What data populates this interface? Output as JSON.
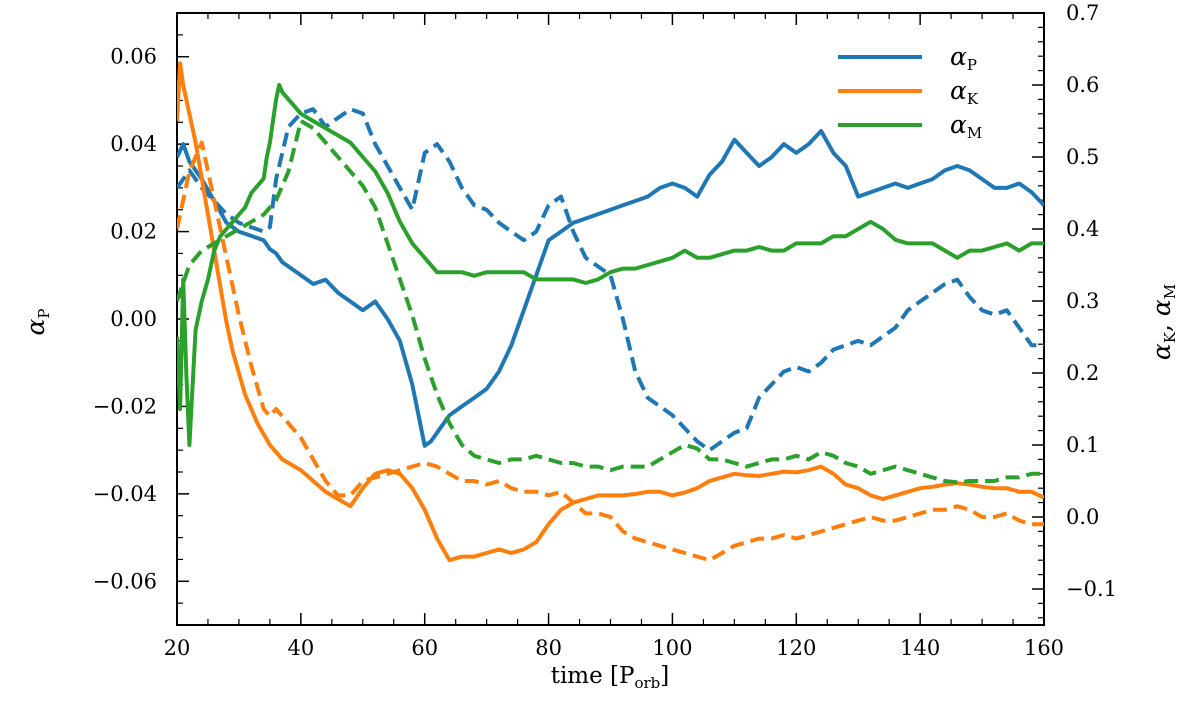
{
  "chart_data": {
    "type": "line",
    "xlabel": {
      "main": "time [P",
      "sub": "orb",
      "close": "]"
    },
    "ylabel_left": {
      "main": "α",
      "sub": "P"
    },
    "ylabel_right": {
      "main1": "α",
      "sub1": "K",
      "sep": ", ",
      "main2": "α",
      "sub2": "M"
    },
    "xlim": [
      20,
      160
    ],
    "ylim_left": [
      -0.07,
      0.07
    ],
    "ylim_right": [
      -0.15,
      0.7
    ],
    "x_ticks": [
      {
        "v": 20,
        "label": "20"
      },
      {
        "v": 40,
        "label": "40"
      },
      {
        "v": 60,
        "label": "60"
      },
      {
        "v": 80,
        "label": "80"
      },
      {
        "v": 100,
        "label": "100"
      },
      {
        "v": 120,
        "label": "120"
      },
      {
        "v": 140,
        "label": "140"
      },
      {
        "v": 160,
        "label": "160"
      }
    ],
    "y_left_ticks": [
      {
        "v": -0.06,
        "label": "−0.06"
      },
      {
        "v": -0.04,
        "label": "−0.04"
      },
      {
        "v": -0.02,
        "label": "−0.02"
      },
      {
        "v": 0.0,
        "label": "0.00"
      },
      {
        "v": 0.02,
        "label": "0.02"
      },
      {
        "v": 0.04,
        "label": "0.04"
      },
      {
        "v": 0.06,
        "label": "0.06"
      }
    ],
    "y_right_ticks": [
      {
        "v": -0.1,
        "label": "−0.1"
      },
      {
        "v": 0.0,
        "label": "0.0"
      },
      {
        "v": 0.1,
        "label": "0.1"
      },
      {
        "v": 0.2,
        "label": "0.2"
      },
      {
        "v": 0.3,
        "label": "0.3"
      },
      {
        "v": 0.4,
        "label": "0.4"
      },
      {
        "v": 0.5,
        "label": "0.5"
      },
      {
        "v": 0.6,
        "label": "0.6"
      },
      {
        "v": 0.7,
        "label": "0.7"
      }
    ],
    "legend": {
      "placement": "top-right",
      "entries": [
        {
          "main": "α",
          "sub": "P",
          "color": "#1f77b4"
        },
        {
          "main": "α",
          "sub": "K",
          "color": "#ff7f0e"
        },
        {
          "main": "α",
          "sub": "M",
          "color": "#2ca02c"
        }
      ]
    },
    "series": [
      {
        "legend_index": 0,
        "color": "#1f77b4",
        "style": "solid",
        "axis": "left",
        "x": [
          20,
          21,
          22,
          24,
          26,
          28,
          30,
          32,
          34,
          35,
          36,
          37,
          38,
          39,
          40,
          42,
          44,
          46,
          48,
          50,
          52,
          54,
          56,
          58,
          59,
          60,
          61,
          62,
          63,
          64,
          66,
          68,
          70,
          72,
          74,
          76,
          78,
          80,
          82,
          84,
          86,
          88,
          90,
          92,
          94,
          96,
          98,
          100,
          102,
          104,
          106,
          108,
          110,
          112,
          114,
          116,
          118,
          120,
          122,
          124,
          126,
          128,
          130,
          132,
          134,
          136,
          138,
          140,
          142,
          144,
          146,
          148,
          150,
          152,
          154,
          156,
          158,
          160
        ],
        "y": [
          0.037,
          0.04,
          0.036,
          0.032,
          0.027,
          0.022,
          0.02,
          0.019,
          0.018,
          0.016,
          0.015,
          0.013,
          0.012,
          0.011,
          0.01,
          0.008,
          0.009,
          0.006,
          0.004,
          0.002,
          0.004,
          0.0,
          -0.005,
          -0.015,
          -0.022,
          -0.029,
          -0.028,
          -0.026,
          -0.024,
          -0.022,
          -0.02,
          -0.018,
          -0.016,
          -0.012,
          -0.006,
          0.002,
          0.01,
          0.018,
          0.02,
          0.022,
          0.023,
          0.024,
          0.025,
          0.026,
          0.027,
          0.028,
          0.03,
          0.031,
          0.03,
          0.028,
          0.033,
          0.036,
          0.041,
          0.038,
          0.035,
          0.037,
          0.04,
          0.038,
          0.04,
          0.043,
          0.038,
          0.035,
          0.028,
          0.029,
          0.03,
          0.031,
          0.03,
          0.031,
          0.032,
          0.034,
          0.035,
          0.034,
          0.032,
          0.03,
          0.03,
          0.031,
          0.029,
          0.026
        ]
      },
      {
        "legend_index": null,
        "color": "#1f77b4",
        "style": "dashed",
        "axis": "left",
        "x": [
          20,
          22,
          24,
          26,
          28,
          30,
          32,
          34,
          35,
          36,
          38,
          40,
          42,
          44,
          46,
          48,
          50,
          52,
          54,
          56,
          58,
          60,
          62,
          64,
          66,
          68,
          70,
          72,
          74,
          76,
          78,
          80,
          82,
          84,
          86,
          88,
          90,
          92,
          94,
          96,
          98,
          100,
          102,
          104,
          106,
          108,
          110,
          112,
          114,
          116,
          118,
          120,
          122,
          124,
          126,
          128,
          130,
          132,
          134,
          136,
          138,
          140,
          142,
          144,
          146,
          148,
          150,
          152,
          154,
          156,
          158,
          160
        ],
        "y": [
          0.03,
          0.034,
          0.03,
          0.027,
          0.024,
          0.022,
          0.021,
          0.02,
          0.021,
          0.032,
          0.044,
          0.047,
          0.048,
          0.044,
          0.046,
          0.048,
          0.047,
          0.04,
          0.035,
          0.03,
          0.025,
          0.038,
          0.04,
          0.036,
          0.03,
          0.026,
          0.025,
          0.022,
          0.02,
          0.018,
          0.02,
          0.026,
          0.028,
          0.02,
          0.014,
          0.012,
          0.01,
          0.0,
          -0.012,
          -0.018,
          -0.02,
          -0.022,
          -0.025,
          -0.028,
          -0.03,
          -0.028,
          -0.026,
          -0.025,
          -0.018,
          -0.015,
          -0.012,
          -0.011,
          -0.012,
          -0.01,
          -0.007,
          -0.006,
          -0.005,
          -0.006,
          -0.004,
          -0.002,
          0.002,
          0.004,
          0.006,
          0.008,
          0.009,
          0.005,
          0.002,
          0.001,
          0.002,
          -0.002,
          -0.006,
          -0.006
        ]
      },
      {
        "legend_index": 1,
        "color": "#ff7f0e",
        "style": "solid",
        "axis": "right",
        "x": [
          20,
          20.5,
          21,
          22,
          23,
          24,
          25,
          26,
          27,
          28,
          29,
          30,
          31,
          32,
          33,
          34,
          35,
          36,
          37,
          38,
          39,
          40,
          42,
          44,
          46,
          48,
          50,
          52,
          54,
          56,
          58,
          60,
          62,
          64,
          66,
          68,
          70,
          72,
          74,
          76,
          78,
          80,
          82,
          84,
          86,
          88,
          90,
          92,
          94,
          96,
          98,
          100,
          102,
          104,
          106,
          108,
          110,
          112,
          114,
          116,
          118,
          120,
          122,
          124,
          126,
          128,
          130,
          132,
          134,
          136,
          138,
          140,
          142,
          144,
          146,
          148,
          150,
          152,
          154,
          156,
          158,
          160
        ],
        "y": [
          0.55,
          0.63,
          0.6,
          0.56,
          0.52,
          0.47,
          0.42,
          0.37,
          0.32,
          0.27,
          0.23,
          0.2,
          0.17,
          0.15,
          0.13,
          0.115,
          0.1,
          0.09,
          0.08,
          0.075,
          0.07,
          0.065,
          0.05,
          0.035,
          0.025,
          0.015,
          0.04,
          0.06,
          0.065,
          0.06,
          0.04,
          0.01,
          -0.03,
          -0.06,
          -0.055,
          -0.055,
          -0.05,
          -0.045,
          -0.05,
          -0.045,
          -0.035,
          -0.01,
          0.01,
          0.02,
          0.025,
          0.03,
          0.03,
          0.03,
          0.032,
          0.035,
          0.035,
          0.03,
          0.034,
          0.04,
          0.05,
          0.055,
          0.06,
          0.058,
          0.057,
          0.06,
          0.063,
          0.062,
          0.065,
          0.07,
          0.06,
          0.045,
          0.04,
          0.03,
          0.025,
          0.03,
          0.035,
          0.04,
          0.042,
          0.045,
          0.047,
          0.045,
          0.042,
          0.04,
          0.04,
          0.035,
          0.035,
          0.027
        ]
      },
      {
        "legend_index": null,
        "color": "#ff7f0e",
        "style": "dashed",
        "axis": "right",
        "x": [
          20,
          22,
          24,
          26,
          28,
          30,
          32,
          34,
          35,
          36,
          37,
          38,
          40,
          42,
          44,
          46,
          47,
          48,
          50,
          52,
          54,
          56,
          58,
          60,
          62,
          64,
          66,
          68,
          70,
          72,
          74,
          76,
          78,
          80,
          82,
          84,
          86,
          88,
          90,
          92,
          94,
          96,
          98,
          100,
          102,
          104,
          106,
          108,
          110,
          112,
          114,
          116,
          118,
          120,
          122,
          124,
          126,
          128,
          130,
          132,
          134,
          136,
          138,
          140,
          142,
          144,
          146,
          148,
          150,
          152,
          154,
          156,
          158,
          160
        ],
        "y": [
          0.4,
          0.48,
          0.52,
          0.44,
          0.36,
          0.28,
          0.21,
          0.15,
          0.14,
          0.15,
          0.14,
          0.13,
          0.11,
          0.08,
          0.05,
          0.03,
          0.03,
          0.03,
          0.05,
          0.055,
          0.06,
          0.065,
          0.07,
          0.075,
          0.07,
          0.06,
          0.05,
          0.05,
          0.045,
          0.05,
          0.04,
          0.035,
          0.035,
          0.03,
          0.035,
          0.02,
          0.005,
          0.005,
          0.0,
          -0.02,
          -0.03,
          -0.035,
          -0.04,
          -0.045,
          -0.05,
          -0.055,
          -0.06,
          -0.05,
          -0.04,
          -0.035,
          -0.03,
          -0.03,
          -0.025,
          -0.03,
          -0.025,
          -0.02,
          -0.015,
          -0.01,
          -0.005,
          -0.0,
          -0.005,
          -0.005,
          0.0,
          0.005,
          0.01,
          0.01,
          0.015,
          0.01,
          0.0,
          0.0,
          0.005,
          -0.005,
          -0.01,
          -0.01
        ]
      },
      {
        "legend_index": 2,
        "color": "#2ca02c",
        "style": "solid",
        "axis": "right",
        "x": [
          20,
          20.5,
          21,
          21.5,
          22,
          22.5,
          23,
          24,
          25,
          26,
          27,
          28,
          29,
          30,
          31,
          32,
          33,
          34,
          34.5,
          35,
          35.5,
          36,
          36.5,
          37,
          38,
          39,
          40,
          42,
          44,
          46,
          48,
          50,
          52,
          54,
          56,
          58,
          60,
          62,
          64,
          66,
          68,
          70,
          72,
          74,
          76,
          78,
          80,
          82,
          84,
          86,
          88,
          90,
          92,
          94,
          96,
          98,
          100,
          102,
          104,
          106,
          108,
          110,
          112,
          114,
          116,
          118,
          120,
          122,
          124,
          126,
          128,
          130,
          132,
          134,
          136,
          138,
          140,
          142,
          144,
          146,
          148,
          150,
          152,
          154,
          156,
          158,
          160
        ],
        "y": [
          0.25,
          0.15,
          0.33,
          0.2,
          0.1,
          0.18,
          0.26,
          0.3,
          0.33,
          0.37,
          0.39,
          0.4,
          0.41,
          0.42,
          0.43,
          0.45,
          0.46,
          0.47,
          0.5,
          0.52,
          0.55,
          0.58,
          0.6,
          0.59,
          0.58,
          0.57,
          0.56,
          0.55,
          0.54,
          0.53,
          0.52,
          0.5,
          0.48,
          0.45,
          0.41,
          0.38,
          0.36,
          0.34,
          0.34,
          0.34,
          0.335,
          0.34,
          0.34,
          0.34,
          0.34,
          0.33,
          0.33,
          0.33,
          0.33,
          0.325,
          0.33,
          0.34,
          0.345,
          0.345,
          0.35,
          0.355,
          0.36,
          0.37,
          0.36,
          0.36,
          0.365,
          0.37,
          0.37,
          0.375,
          0.37,
          0.37,
          0.38,
          0.38,
          0.38,
          0.39,
          0.39,
          0.4,
          0.41,
          0.4,
          0.385,
          0.38,
          0.38,
          0.38,
          0.37,
          0.36,
          0.37,
          0.37,
          0.375,
          0.38,
          0.37,
          0.38,
          0.38
        ]
      },
      {
        "legend_index": null,
        "color": "#2ca02c",
        "style": "dashed",
        "axis": "right",
        "x": [
          20,
          22,
          24,
          26,
          28,
          30,
          32,
          34,
          36,
          38,
          40,
          42,
          44,
          46,
          48,
          50,
          52,
          54,
          56,
          58,
          60,
          62,
          64,
          66,
          68,
          70,
          72,
          74,
          76,
          78,
          80,
          82,
          84,
          86,
          88,
          90,
          92,
          94,
          96,
          98,
          100,
          102,
          104,
          106,
          108,
          110,
          112,
          114,
          116,
          118,
          120,
          122,
          124,
          126,
          128,
          130,
          132,
          134,
          136,
          138,
          140,
          142,
          144,
          146,
          148,
          150,
          152,
          154,
          156,
          158,
          160
        ],
        "y": [
          0.3,
          0.35,
          0.37,
          0.38,
          0.39,
          0.4,
          0.41,
          0.42,
          0.44,
          0.48,
          0.55,
          0.54,
          0.52,
          0.5,
          0.48,
          0.46,
          0.43,
          0.38,
          0.33,
          0.28,
          0.22,
          0.17,
          0.13,
          0.1,
          0.085,
          0.08,
          0.075,
          0.08,
          0.08,
          0.085,
          0.08,
          0.075,
          0.075,
          0.07,
          0.07,
          0.065,
          0.07,
          0.07,
          0.07,
          0.08,
          0.09,
          0.1,
          0.095,
          0.08,
          0.08,
          0.075,
          0.07,
          0.075,
          0.08,
          0.08,
          0.085,
          0.08,
          0.09,
          0.085,
          0.075,
          0.07,
          0.06,
          0.065,
          0.07,
          0.065,
          0.06,
          0.055,
          0.05,
          0.048,
          0.05,
          0.05,
          0.05,
          0.055,
          0.055,
          0.06,
          0.06
        ]
      }
    ]
  }
}
